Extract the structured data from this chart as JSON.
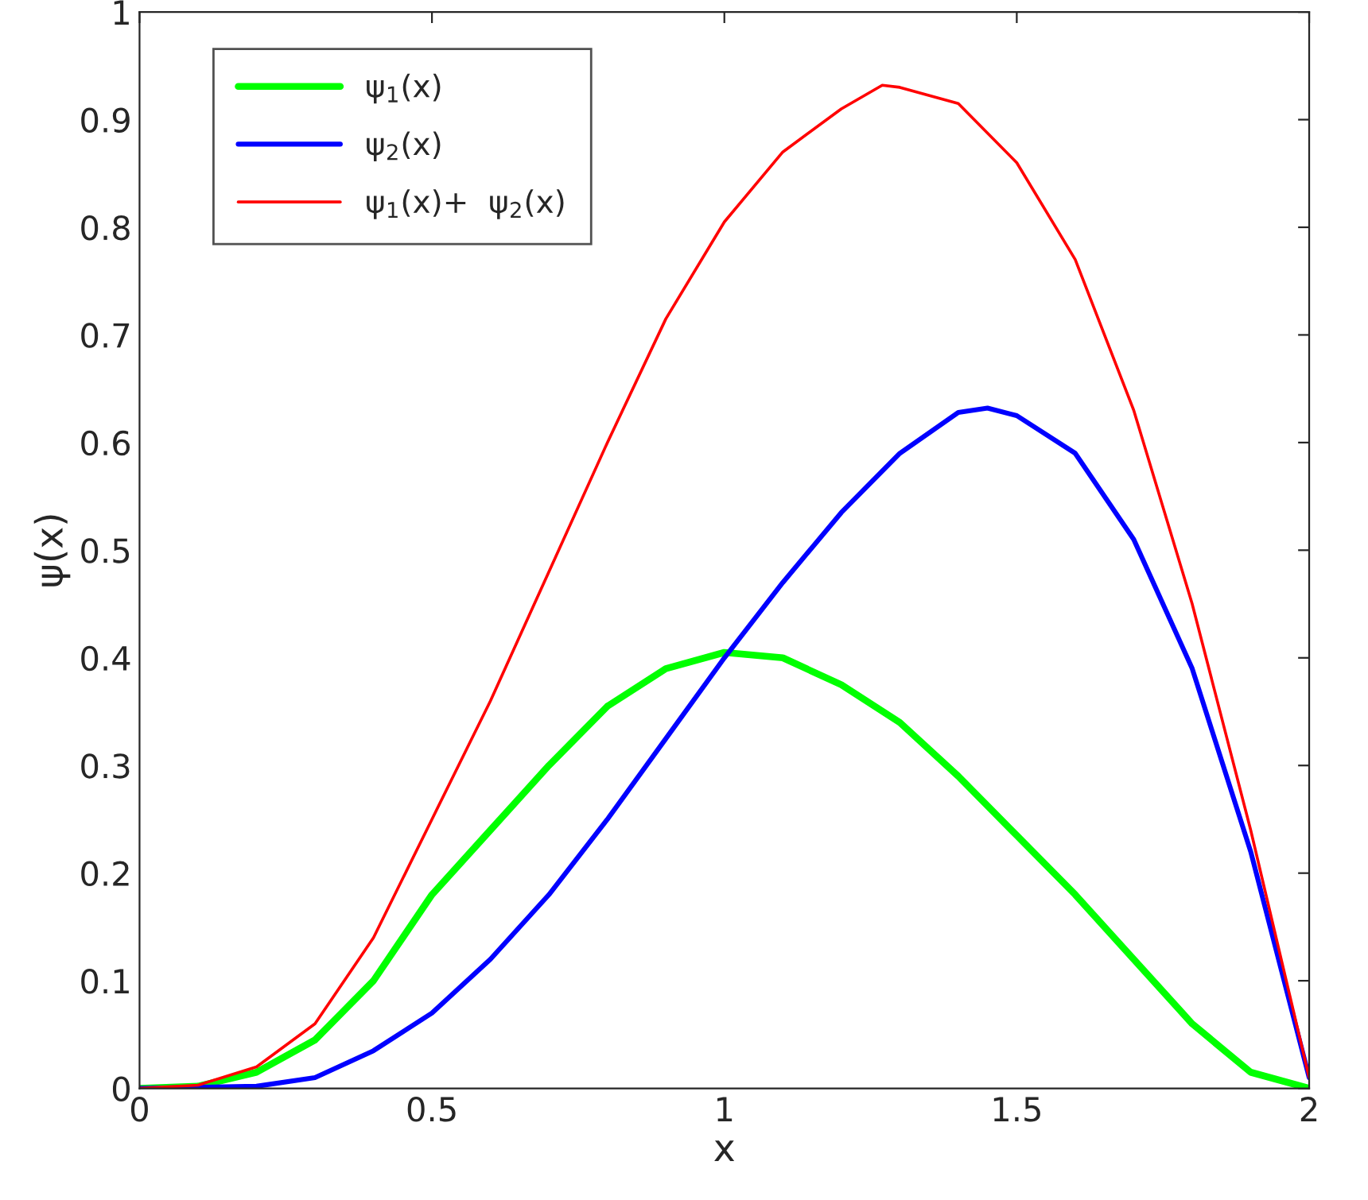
{
  "chart_data": {
    "type": "line",
    "xlabel": "x",
    "ylabel": "ψ(x)",
    "xlim": [
      0,
      2
    ],
    "xticks": [
      0,
      0.5,
      1,
      1.5,
      2
    ],
    "ylim": [
      0,
      1
    ],
    "yticks": [
      0,
      0.1,
      0.2,
      0.3,
      0.4,
      0.5,
      0.6,
      0.7,
      0.8,
      0.9,
      1
    ],
    "grid": false,
    "legend": "top left",
    "marker": "none",
    "line_style": "solid",
    "series": [
      {
        "name": "ψ$_{1}$(x)",
        "color": "#00ff00",
        "x": [
          0,
          0.1,
          0.2,
          0.3,
          0.4,
          0.5,
          0.6,
          0.7,
          0.8,
          0.9,
          1.0,
          1.1,
          1.2,
          1.3,
          1.4,
          1.5,
          1.6,
          1.7,
          1.8,
          1.9,
          2.0
        ],
        "values": [
          0,
          0.002,
          0.015,
          0.045,
          0.1,
          0.18,
          0.24,
          0.3,
          0.355,
          0.39,
          0.405,
          0.4,
          0.375,
          0.34,
          0.29,
          0.235,
          0.18,
          0.12,
          0.06,
          0.015,
          0
        ]
      },
      {
        "name": "ψ$_{2}$(x)",
        "color": "#0000ff",
        "x": [
          0,
          0.2,
          0.3,
          0.4,
          0.5,
          0.6,
          0.7,
          0.8,
          0.9,
          1.0,
          1.1,
          1.2,
          1.3,
          1.4,
          1.45,
          1.5,
          1.6,
          1.7,
          1.8,
          1.9,
          2.0
        ],
        "values": [
          0,
          0.002,
          0.01,
          0.035,
          0.07,
          0.12,
          0.18,
          0.25,
          0.325,
          0.4,
          0.47,
          0.535,
          0.59,
          0.628,
          0.632,
          0.625,
          0.59,
          0.51,
          0.39,
          0.22,
          0.01
        ]
      },
      {
        "name": "ψ$_{1}$(x)+  ψ$_{2}$(x)",
        "color": "#ff0000",
        "x": [
          0,
          0.1,
          0.2,
          0.3,
          0.4,
          0.5,
          0.6,
          0.7,
          0.8,
          0.9,
          1.0,
          1.1,
          1.2,
          1.27,
          1.3,
          1.4,
          1.5,
          1.6,
          1.7,
          1.8,
          1.9,
          2.0
        ],
        "values": [
          0,
          0.003,
          0.02,
          0.06,
          0.14,
          0.25,
          0.36,
          0.48,
          0.6,
          0.715,
          0.805,
          0.87,
          0.91,
          0.932,
          0.93,
          0.915,
          0.86,
          0.77,
          0.63,
          0.45,
          0.24,
          0.01
        ]
      }
    ]
  }
}
